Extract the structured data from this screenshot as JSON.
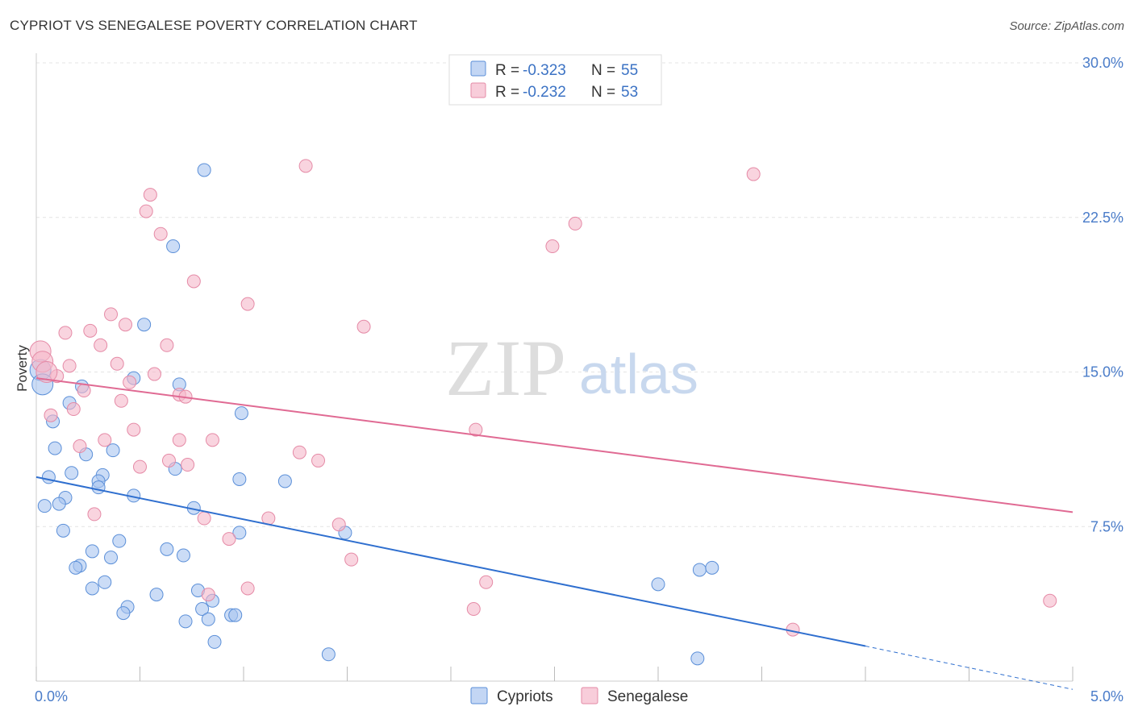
{
  "header": {
    "title": "CYPRIOT VS SENEGALESE POVERTY CORRELATION CHART",
    "source": "Source: ZipAtlas.com"
  },
  "watermark": {
    "zip": "ZIP",
    "atlas": "atlas"
  },
  "legend": {
    "rows": [
      {
        "r_label": "R = ",
        "r_value": "-0.323",
        "n_label": "N = ",
        "n_value": "55",
        "color": "#a9c5f0"
      },
      {
        "r_label": "R = ",
        "r_value": "-0.232",
        "n_label": "N = ",
        "n_value": "53",
        "color": "#f5b8ca"
      }
    ]
  },
  "bottom_legend": [
    {
      "label": "Cypriots",
      "color": "#a9c5f0"
    },
    {
      "label": "Senegalese",
      "color": "#f5b8ca"
    }
  ],
  "chart_data": {
    "type": "scatter",
    "title": "CYPRIOT VS SENEGALESE POVERTY CORRELATION CHART",
    "xlabel": "",
    "ylabel": "Poverty",
    "xlim": [
      0,
      5.0
    ],
    "ylim": [
      0,
      30.0
    ],
    "x_ticks": [
      "0.0%",
      "5.0%"
    ],
    "y_ticks": [
      "7.5%",
      "15.0%",
      "22.5%",
      "30.0%"
    ],
    "y_tick_values": [
      7.5,
      15.0,
      22.5,
      30.0
    ],
    "grid": true,
    "legend_position": "top-center",
    "series": [
      {
        "name": "Cypriots",
        "color": "#a9c5f0",
        "edge": "#5b8fd8",
        "line_color": "#2f6fcf",
        "trend": {
          "x0": 0.0,
          "y0": 9.9,
          "x1": 4.0,
          "y1": 1.7,
          "dash_to_x": 5.0,
          "dash_to_y": -0.4
        },
        "points": [
          [
            0.81,
            24.8
          ],
          [
            0.66,
            21.1
          ],
          [
            0.52,
            17.3
          ],
          [
            0.47,
            14.7
          ],
          [
            0.69,
            14.4
          ],
          [
            0.22,
            14.3
          ],
          [
            0.16,
            13.5
          ],
          [
            0.99,
            13.0
          ],
          [
            0.08,
            12.6
          ],
          [
            0.09,
            11.3
          ],
          [
            0.24,
            11.0
          ],
          [
            0.37,
            11.2
          ],
          [
            0.17,
            10.1
          ],
          [
            0.06,
            9.9
          ],
          [
            0.32,
            10.0
          ],
          [
            0.3,
            9.7
          ],
          [
            0.67,
            10.3
          ],
          [
            0.98,
            9.8
          ],
          [
            1.2,
            9.7
          ],
          [
            0.3,
            9.4
          ],
          [
            0.14,
            8.9
          ],
          [
            0.47,
            9.0
          ],
          [
            0.04,
            8.5
          ],
          [
            0.11,
            8.6
          ],
          [
            0.76,
            8.4
          ],
          [
            0.13,
            7.3
          ],
          [
            0.98,
            7.2
          ],
          [
            1.49,
            7.2
          ],
          [
            0.4,
            6.8
          ],
          [
            0.63,
            6.4
          ],
          [
            0.27,
            6.3
          ],
          [
            0.71,
            6.1
          ],
          [
            0.36,
            6.0
          ],
          [
            0.21,
            5.6
          ],
          [
            0.19,
            5.5
          ],
          [
            0.33,
            4.8
          ],
          [
            0.27,
            4.5
          ],
          [
            0.78,
            4.4
          ],
          [
            0.58,
            4.2
          ],
          [
            0.85,
            3.9
          ],
          [
            0.44,
            3.6
          ],
          [
            0.8,
            3.5
          ],
          [
            0.42,
            3.3
          ],
          [
            0.94,
            3.2
          ],
          [
            0.96,
            3.2
          ],
          [
            0.83,
            3.0
          ],
          [
            0.72,
            2.9
          ],
          [
            3.0,
            4.7
          ],
          [
            3.2,
            5.4
          ],
          [
            3.26,
            5.5
          ],
          [
            0.86,
            1.9
          ],
          [
            1.41,
            1.3
          ],
          [
            3.19,
            1.1
          ],
          [
            0.02,
            15.1
          ],
          [
            0.03,
            14.4
          ]
        ]
      },
      {
        "name": "Senegalese",
        "color": "#f5b8ca",
        "edge": "#e58aa6",
        "line_color": "#e06a93",
        "trend": {
          "x0": 0.0,
          "y0": 14.7,
          "x1": 5.0,
          "y1": 8.2
        },
        "points": [
          [
            1.3,
            25.0
          ],
          [
            3.46,
            24.6
          ],
          [
            0.55,
            23.6
          ],
          [
            0.53,
            22.8
          ],
          [
            2.6,
            22.2
          ],
          [
            0.6,
            21.7
          ],
          [
            2.49,
            21.1
          ],
          [
            0.76,
            19.4
          ],
          [
            1.02,
            18.3
          ],
          [
            0.36,
            17.8
          ],
          [
            0.43,
            17.3
          ],
          [
            1.58,
            17.2
          ],
          [
            0.26,
            17.0
          ],
          [
            0.14,
            16.9
          ],
          [
            0.63,
            16.3
          ],
          [
            0.31,
            16.3
          ],
          [
            0.39,
            15.4
          ],
          [
            0.16,
            15.3
          ],
          [
            0.57,
            14.9
          ],
          [
            0.45,
            14.5
          ],
          [
            0.1,
            14.8
          ],
          [
            0.23,
            14.1
          ],
          [
            0.69,
            13.9
          ],
          [
            0.72,
            13.8
          ],
          [
            0.41,
            13.6
          ],
          [
            0.18,
            13.2
          ],
          [
            0.07,
            12.9
          ],
          [
            0.47,
            12.2
          ],
          [
            2.12,
            12.2
          ],
          [
            0.33,
            11.7
          ],
          [
            0.69,
            11.7
          ],
          [
            0.85,
            11.7
          ],
          [
            0.21,
            11.4
          ],
          [
            1.27,
            11.1
          ],
          [
            1.36,
            10.7
          ],
          [
            0.64,
            10.7
          ],
          [
            0.73,
            10.5
          ],
          [
            0.5,
            10.4
          ],
          [
            0.28,
            8.1
          ],
          [
            0.81,
            7.9
          ],
          [
            1.12,
            7.9
          ],
          [
            1.46,
            7.6
          ],
          [
            0.93,
            6.9
          ],
          [
            1.52,
            5.9
          ],
          [
            2.17,
            4.8
          ],
          [
            1.02,
            4.5
          ],
          [
            0.83,
            4.2
          ],
          [
            2.11,
            3.5
          ],
          [
            4.89,
            3.9
          ],
          [
            3.65,
            2.5
          ],
          [
            0.02,
            16.0
          ],
          [
            0.03,
            15.5
          ],
          [
            0.05,
            15.0
          ]
        ]
      }
    ]
  }
}
